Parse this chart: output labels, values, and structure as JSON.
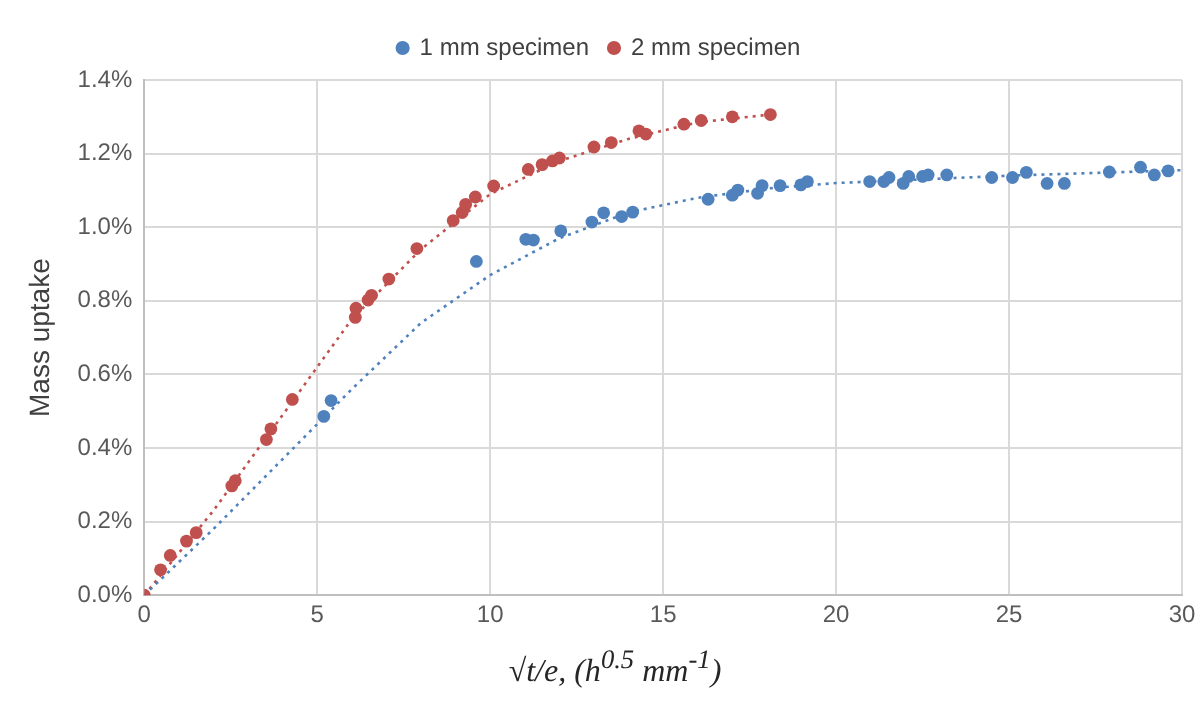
{
  "chart_data": {
    "type": "scatter",
    "xlabel": "√t/e, (h$^{0.5}$ mm$^{-1}$)",
    "ylabel": "Mass uptake",
    "xlim": [
      0,
      30
    ],
    "xticks": [
      0,
      5,
      10,
      15,
      20,
      25,
      30
    ],
    "ylim": [
      0,
      1.4
    ],
    "yticks": [
      {
        "value": 0,
        "label": "0.0%"
      },
      {
        "value": 0.2,
        "label": "0.2%"
      },
      {
        "value": 0.4,
        "label": "0.4%"
      },
      {
        "value": 0.6,
        "label": "0.6%"
      },
      {
        "value": 0.8,
        "label": "0.8%"
      },
      {
        "value": 1.0,
        "label": "1.0%"
      },
      {
        "value": 1.2,
        "label": "1.2%"
      },
      {
        "value": 1.4,
        "label": "1.4%"
      }
    ],
    "grid": true,
    "legend": "top",
    "marker": "circle",
    "series": [
      {
        "name": "1 mm specimen",
        "color": "#4f81bd",
        "x": [
          5.19,
          5.4,
          9.6,
          11.03,
          11.25,
          12.04,
          12.94,
          13.28,
          13.8,
          14.12,
          16.3,
          17.0,
          17.16,
          17.73,
          17.86,
          18.38,
          18.98,
          19.17,
          20.97,
          21.38,
          21.53,
          21.94,
          22.1,
          22.5,
          22.66,
          23.2,
          24.5,
          25.1,
          25.5,
          26.1,
          26.6,
          27.9,
          28.8,
          29.2,
          29.6
        ],
        "values": [
          0.486,
          0.529,
          0.907,
          0.967,
          0.965,
          0.99,
          1.014,
          1.039,
          1.029,
          1.041,
          1.076,
          1.087,
          1.101,
          1.092,
          1.113,
          1.113,
          1.115,
          1.124,
          1.124,
          1.124,
          1.135,
          1.119,
          1.138,
          1.138,
          1.142,
          1.142,
          1.135,
          1.135,
          1.149,
          1.119,
          1.119,
          1.15,
          1.163,
          1.142,
          1.153
        ]
      },
      {
        "name": "2 mm specimen",
        "color": "#c0504d",
        "x": [
          0,
          0.47,
          0.75,
          1.22,
          1.5,
          2.53,
          2.63,
          3.53,
          3.66,
          4.28,
          6.1,
          6.12,
          6.47,
          6.57,
          7.07,
          7.88,
          8.93,
          9.19,
          9.29,
          9.57,
          10.1,
          11.1,
          11.5,
          11.8,
          12.0,
          13.0,
          13.5,
          14.3,
          14.5,
          15.6,
          16.1,
          17.0,
          18.1
        ],
        "values": [
          0,
          0.069,
          0.108,
          0.147,
          0.17,
          0.297,
          0.311,
          0.423,
          0.452,
          0.532,
          0.755,
          0.78,
          0.802,
          0.815,
          0.859,
          0.942,
          1.018,
          1.04,
          1.062,
          1.082,
          1.112,
          1.157,
          1.17,
          1.18,
          1.188,
          1.218,
          1.23,
          1.262,
          1.253,
          1.28,
          1.29,
          1.3,
          1.306
        ]
      },
      {
        "type": "line",
        "color": "#4f81bd",
        "marker": "none",
        "line_style": "dotted",
        "x": [
          0,
          2,
          4,
          6,
          8,
          10,
          12,
          14,
          16,
          18,
          20,
          25,
          30
        ],
        "values": [
          0,
          0.18,
          0.37,
          0.56,
          0.74,
          0.87,
          0.97,
          1.04,
          1.08,
          1.105,
          1.12,
          1.14,
          1.155
        ]
      },
      {
        "type": "line",
        "color": "#c0504d",
        "marker": "none",
        "line_style": "dotted",
        "x": [
          0,
          2,
          4,
          6,
          8,
          10,
          12,
          14,
          16,
          18
        ],
        "values": [
          0,
          0.23,
          0.49,
          0.75,
          0.94,
          1.09,
          1.18,
          1.24,
          1.285,
          1.305
        ]
      }
    ]
  }
}
